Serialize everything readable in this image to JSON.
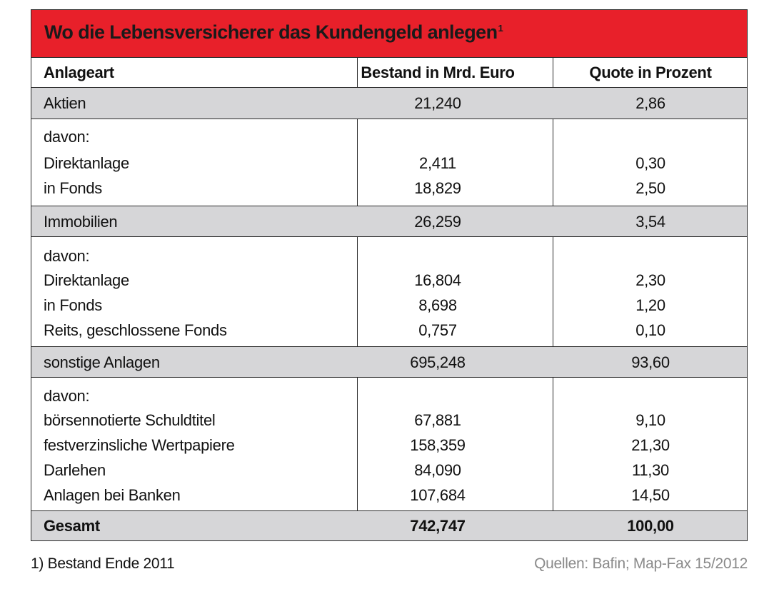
{
  "title": {
    "text": "Wo die Lebensversicherer das Kundengeld anlegen",
    "footnote_mark": "1"
  },
  "header": {
    "col1": "Anlageart",
    "col2": "Bestand in Mrd. Euro",
    "col3": "Quote in Prozent"
  },
  "rows": [
    {
      "label": "Aktien",
      "bestand": "21,240",
      "quote": "2,86"
    },
    {
      "label": "davon:",
      "bestand": "",
      "quote": ""
    },
    {
      "label": "Direktanlage",
      "bestand": "2,411",
      "quote": "0,30"
    },
    {
      "label": "in Fonds",
      "bestand": "18,829",
      "quote": "2,50"
    },
    {
      "label": "Immobilien",
      "bestand": "26,259",
      "quote": "3,54"
    },
    {
      "label": "davon:",
      "bestand": "",
      "quote": ""
    },
    {
      "label": "Direktanlage",
      "bestand": "16,804",
      "quote": "2,30"
    },
    {
      "label": "in Fonds",
      "bestand": "8,698",
      "quote": "1,20"
    },
    {
      "label": "Reits, geschlossene Fonds",
      "bestand": "0,757",
      "quote": "0,10"
    },
    {
      "label": "sonstige Anlagen",
      "bestand": "695,248",
      "quote": "93,60"
    },
    {
      "label": "davon:",
      "bestand": "",
      "quote": ""
    },
    {
      "label": "börsennotierte Schuldtitel",
      "bestand": "67,881",
      "quote": "9,10"
    },
    {
      "label": "festverzinsliche Wertpapiere",
      "bestand": "158,359",
      "quote": "21,30"
    },
    {
      "label": "Darlehen",
      "bestand": "84,090",
      "quote": "11,30"
    },
    {
      "label": "Anlagen bei Banken",
      "bestand": "107,684",
      "quote": "14,50"
    }
  ],
  "total": {
    "label": "Gesamt",
    "bestand": "742,747",
    "quote": "100,00"
  },
  "footer": {
    "note": "1) Bestand Ende 2011",
    "source": "Quellen: Bafin; Map-Fax 15/2012"
  },
  "colors": {
    "title_bg": "#e8202a",
    "highlight_row_bg": "#d6d6d8",
    "source_text": "#8a8a8a"
  }
}
